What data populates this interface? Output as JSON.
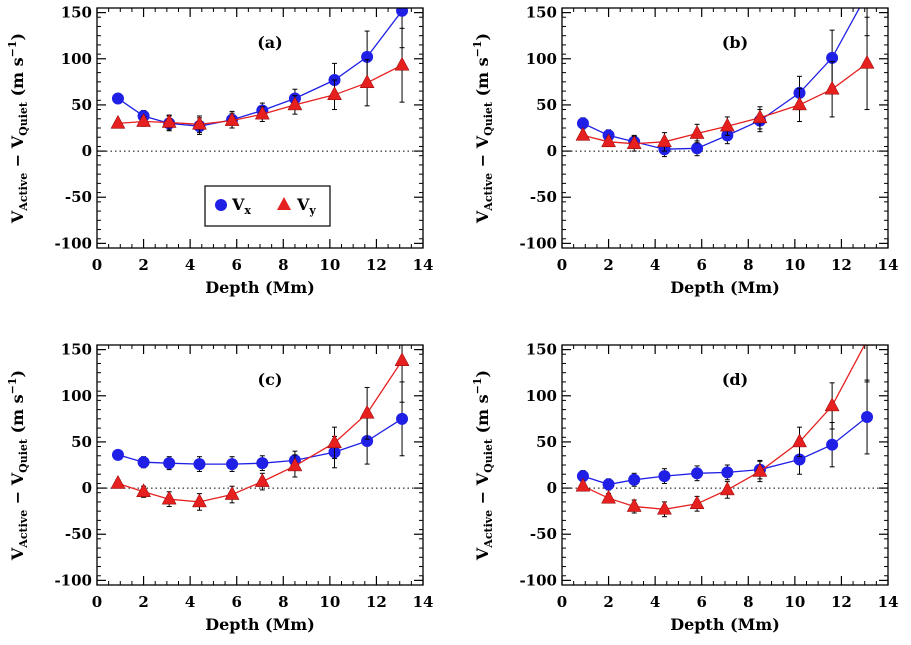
{
  "colors": {
    "vx": "#1f1fe6",
    "vy": "#e61f1f",
    "axis": "#000000",
    "zero_line": "#000000"
  },
  "legend": {
    "vx_main": "V",
    "vx_sub": "x",
    "vy_main": "V",
    "vy_sub": "y"
  },
  "ylabel": {
    "v1": "V",
    "sub1": "Active",
    "dash": " − ",
    "v2": "V",
    "sub2": "Quiet",
    "unit_open": "  (m s",
    "unit_sup": "−1",
    "unit_close": ")"
  },
  "chart_data": [
    {
      "type": "scatter",
      "panel": "(a)",
      "xlabel": "Depth (Mm)",
      "xlim": [
        0,
        14
      ],
      "ylim": [
        -105,
        155
      ],
      "xticks": [
        0,
        2,
        4,
        6,
        8,
        10,
        12,
        14
      ],
      "yticks": [
        -100,
        -50,
        0,
        50,
        100,
        150
      ],
      "zero_line": true,
      "legend": "inside, lower-left",
      "x": [
        0.9,
        2.0,
        3.1,
        4.4,
        5.8,
        7.1,
        8.5,
        10.2,
        11.6,
        13.1
      ],
      "series": [
        {
          "name": "Vx",
          "marker": "circle",
          "values": [
            57,
            38,
            30,
            27,
            34,
            44,
            57,
            77,
            102,
            152
          ],
          "errors": [
            5,
            6,
            8,
            9,
            9,
            8,
            10,
            18,
            28,
            40
          ]
        },
        {
          "name": "Vy",
          "marker": "triangle",
          "values": [
            30,
            32,
            31,
            29,
            33,
            40,
            50,
            61,
            74,
            93
          ],
          "errors": [
            3,
            5,
            8,
            9,
            8,
            8,
            10,
            16,
            25,
            40
          ]
        }
      ]
    },
    {
      "type": "scatter",
      "panel": "(b)",
      "xlabel": "Depth (Mm)",
      "xlim": [
        0,
        14
      ],
      "ylim": [
        -105,
        155
      ],
      "xticks": [
        0,
        2,
        4,
        6,
        8,
        10,
        12,
        14
      ],
      "yticks": [
        -100,
        -50,
        0,
        50,
        100,
        150
      ],
      "zero_line": true,
      "x": [
        0.9,
        2.0,
        3.1,
        4.4,
        5.8,
        7.1,
        8.5,
        10.2,
        11.6,
        13.1
      ],
      "series": [
        {
          "name": "Vx",
          "marker": "circle",
          "values": [
            30,
            17,
            10,
            2,
            3,
            17,
            33,
            63,
            101,
            170
          ],
          "errors": [
            6,
            6,
            7,
            8,
            8,
            9,
            12,
            18,
            30,
            45
          ]
        },
        {
          "name": "Vy",
          "marker": "triangle",
          "values": [
            17,
            10,
            8,
            10,
            19,
            27,
            36,
            50,
            67,
            95
          ],
          "errors": [
            4,
            5,
            8,
            10,
            10,
            10,
            12,
            18,
            30,
            50
          ]
        }
      ]
    },
    {
      "type": "scatter",
      "panel": "(c)",
      "xlabel": "Depth (Mm)",
      "xlim": [
        0,
        14
      ],
      "ylim": [
        -105,
        155
      ],
      "xticks": [
        0,
        2,
        4,
        6,
        8,
        10,
        12,
        14
      ],
      "yticks": [
        -100,
        -50,
        0,
        50,
        100,
        150
      ],
      "zero_line": true,
      "x": [
        0.9,
        2.0,
        3.1,
        4.4,
        5.8,
        7.1,
        8.5,
        10.2,
        11.6,
        13.1
      ],
      "series": [
        {
          "name": "Vx",
          "marker": "circle",
          "values": [
            36,
            28,
            27,
            26,
            26,
            27,
            30,
            39,
            51,
            75
          ],
          "errors": [
            4,
            6,
            7,
            8,
            8,
            8,
            10,
            17,
            25,
            40
          ]
        },
        {
          "name": "Vy",
          "marker": "triangle",
          "values": [
            5,
            -4,
            -12,
            -15,
            -7,
            7,
            24,
            49,
            81,
            138
          ],
          "errors": [
            4,
            6,
            8,
            9,
            9,
            9,
            12,
            17,
            28,
            45
          ]
        }
      ]
    },
    {
      "type": "scatter",
      "panel": "(d)",
      "xlabel": "Depth (Mm)",
      "xlim": [
        0,
        14
      ],
      "ylim": [
        -105,
        155
      ],
      "xticks": [
        0,
        2,
        4,
        6,
        8,
        10,
        12,
        14
      ],
      "yticks": [
        -100,
        -50,
        0,
        50,
        100,
        150
      ],
      "zero_line": true,
      "x": [
        0.9,
        2.0,
        3.1,
        4.4,
        5.8,
        7.1,
        8.5,
        10.2,
        11.6,
        13.1
      ],
      "series": [
        {
          "name": "Vx",
          "marker": "circle",
          "values": [
            13,
            4,
            9,
            13,
            16,
            17,
            20,
            31,
            47,
            77
          ],
          "errors": [
            6,
            6,
            7,
            8,
            8,
            8,
            10,
            16,
            24,
            40
          ]
        },
        {
          "name": "Vy",
          "marker": "triangle",
          "values": [
            2,
            -11,
            -20,
            -23,
            -17,
            -2,
            18,
            50,
            89,
            160
          ],
          "errors": [
            4,
            5,
            7,
            8,
            8,
            9,
            11,
            16,
            25,
            45
          ]
        }
      ]
    }
  ]
}
